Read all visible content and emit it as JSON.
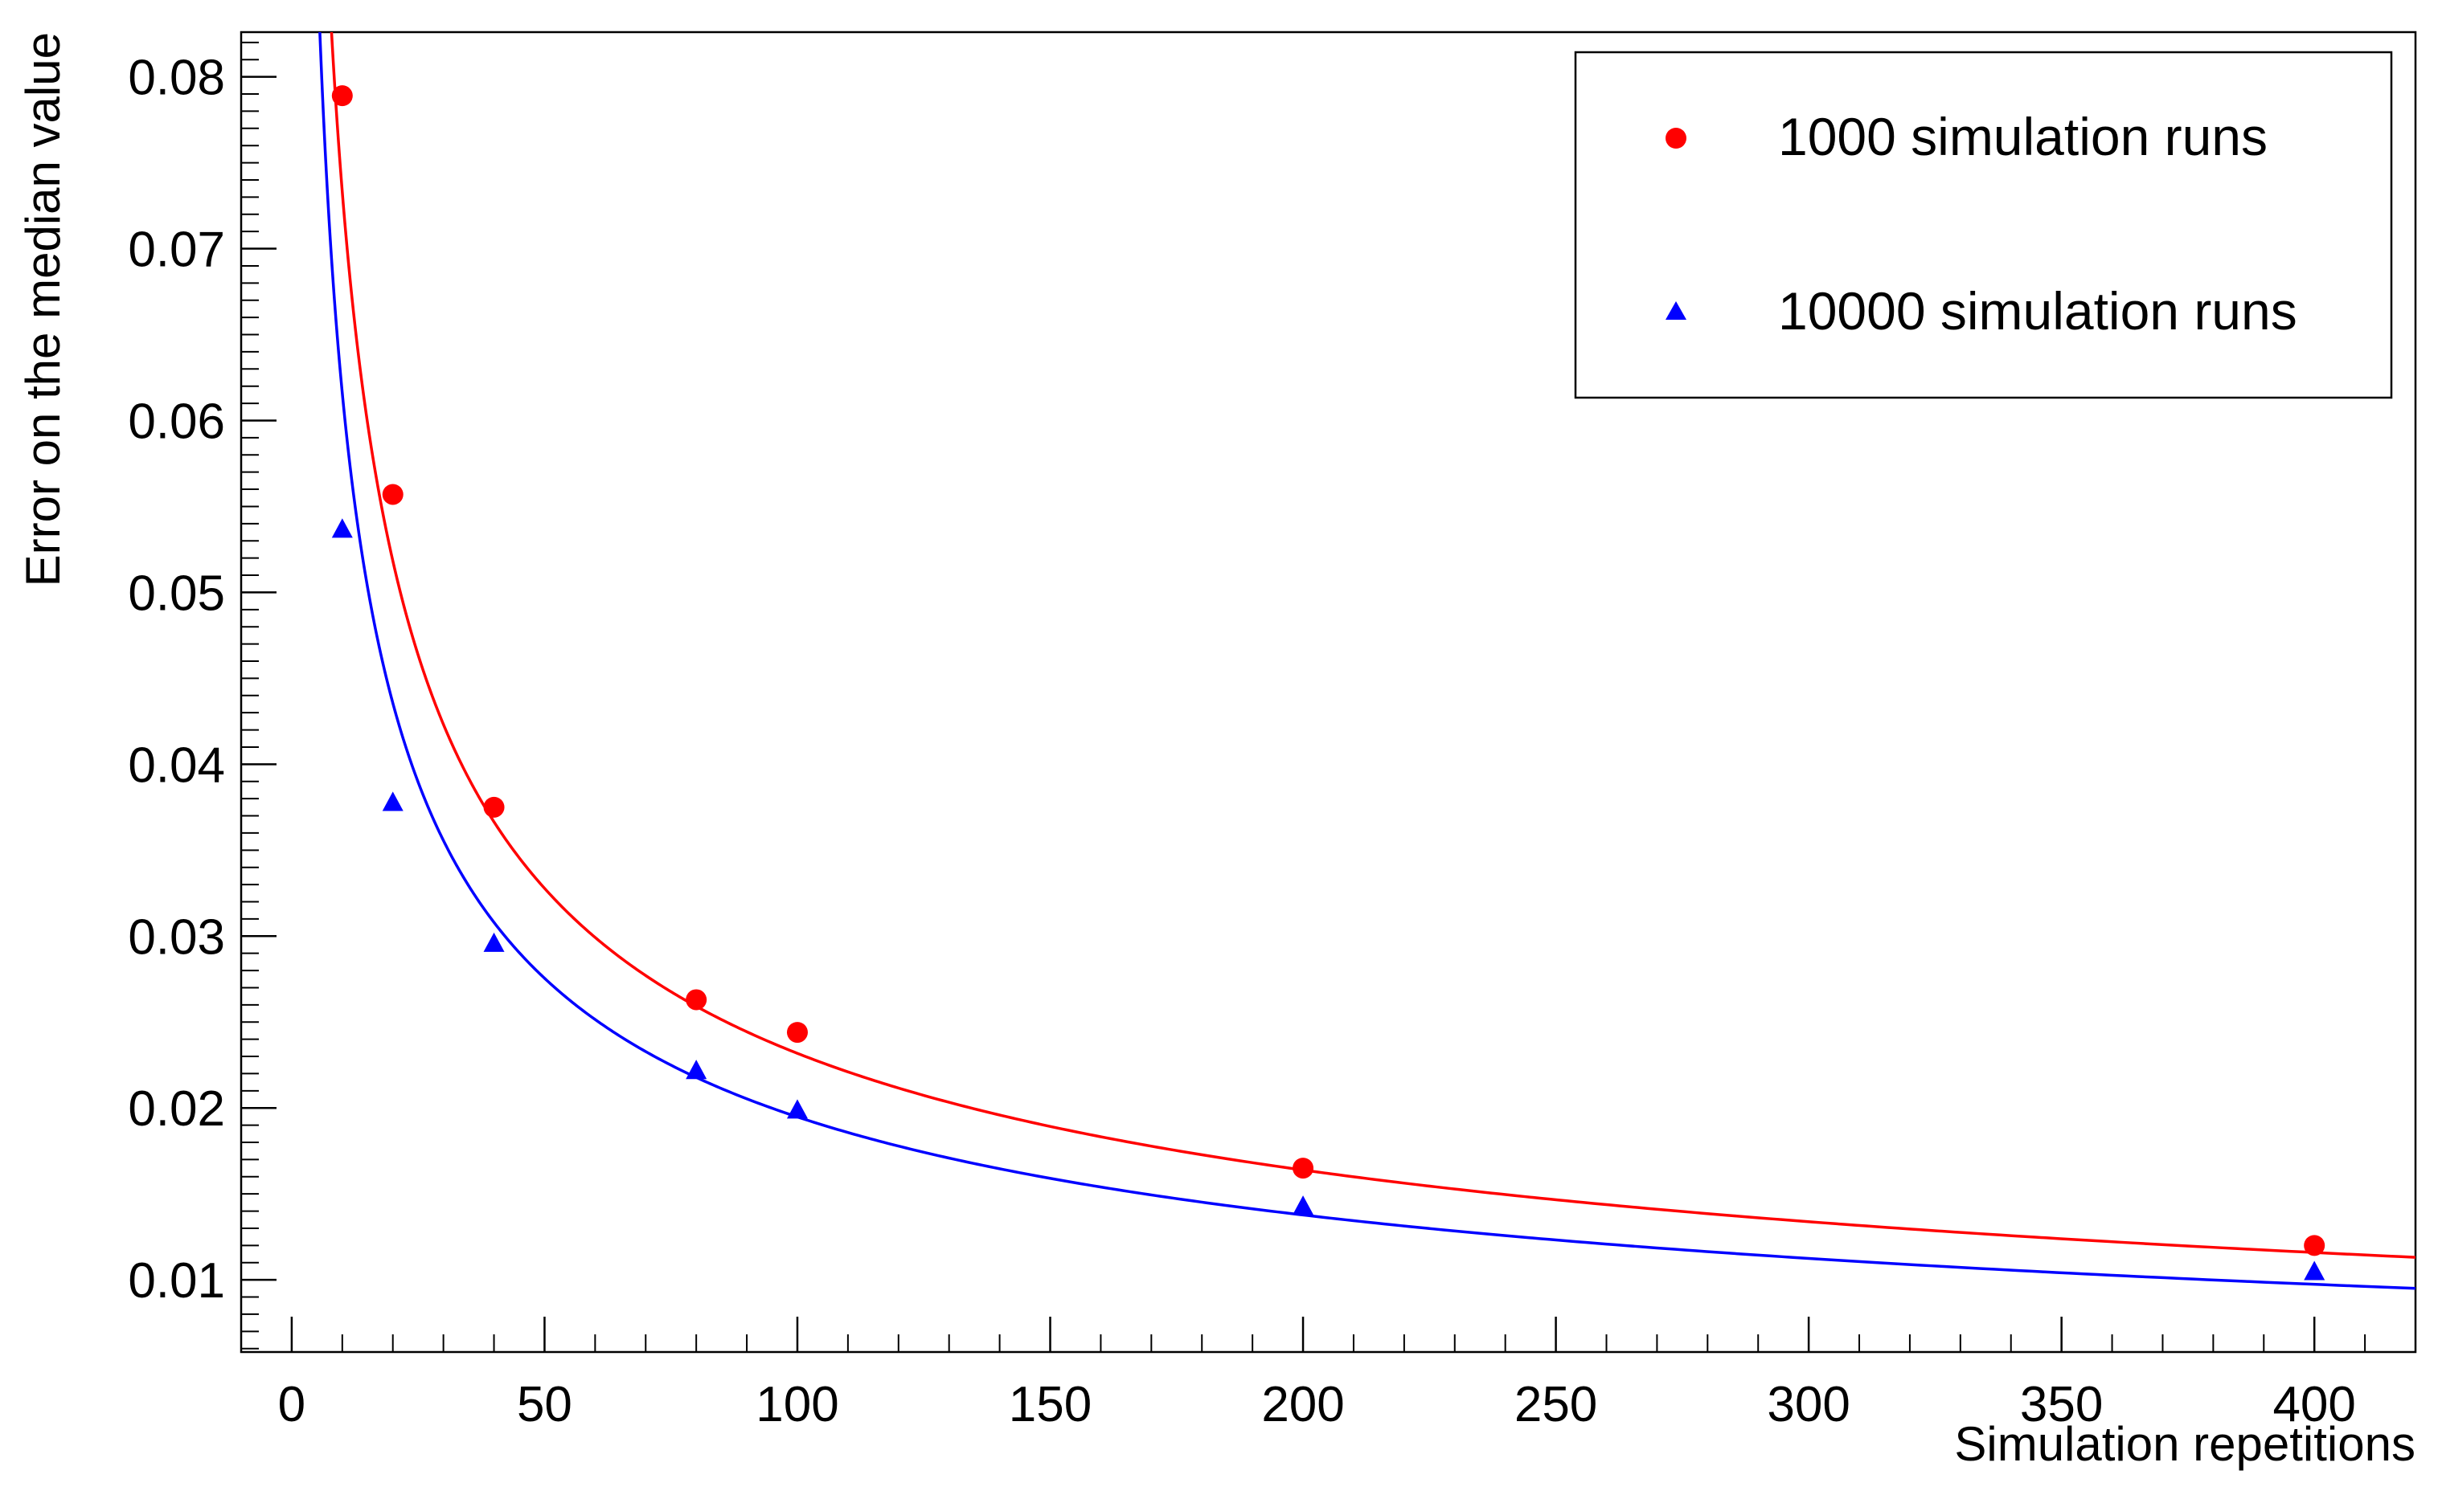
{
  "chart_data": {
    "type": "scatter",
    "title": "",
    "xlabel": "Simulation repetitions",
    "ylabel": "Error on the median value",
    "xlim": [
      -10,
      420
    ],
    "ylim": [
      0.0058,
      0.0826
    ],
    "x_ticks": [
      0,
      50,
      100,
      150,
      200,
      250,
      300,
      350,
      400
    ],
    "x_tick_labels": [
      "0",
      "50",
      "100",
      "150",
      "200",
      "250",
      "300",
      "350",
      "400"
    ],
    "y_ticks": [
      0.01,
      0.02,
      0.03,
      0.04,
      0.05,
      0.06,
      0.07,
      0.08
    ],
    "y_tick_labels": [
      "0.01",
      "0.02",
      "0.03",
      "0.04",
      "0.05",
      "0.06",
      "0.07",
      "0.08"
    ],
    "grid": false,
    "legend_position": "top-right",
    "series": [
      {
        "name": "1000 simulation runs",
        "color": "#ff0000",
        "marker": "circle",
        "x": [
          10,
          20,
          40,
          80,
          100,
          200,
          400
        ],
        "y": [
          0.0789,
          0.0557,
          0.0375,
          0.0263,
          0.0244,
          0.0165,
          0.012
        ],
        "fit_coefficient": 0.2318
      },
      {
        "name": "10000 simulation runs",
        "color": "#0000ff",
        "marker": "triangle",
        "x": [
          10,
          20,
          40,
          80,
          100,
          200,
          400
        ],
        "y": [
          0.0537,
          0.0378,
          0.0296,
          0.0222,
          0.0199,
          0.0143,
          0.0105
        ],
        "fit_coefficient": 0.1948
      }
    ]
  }
}
